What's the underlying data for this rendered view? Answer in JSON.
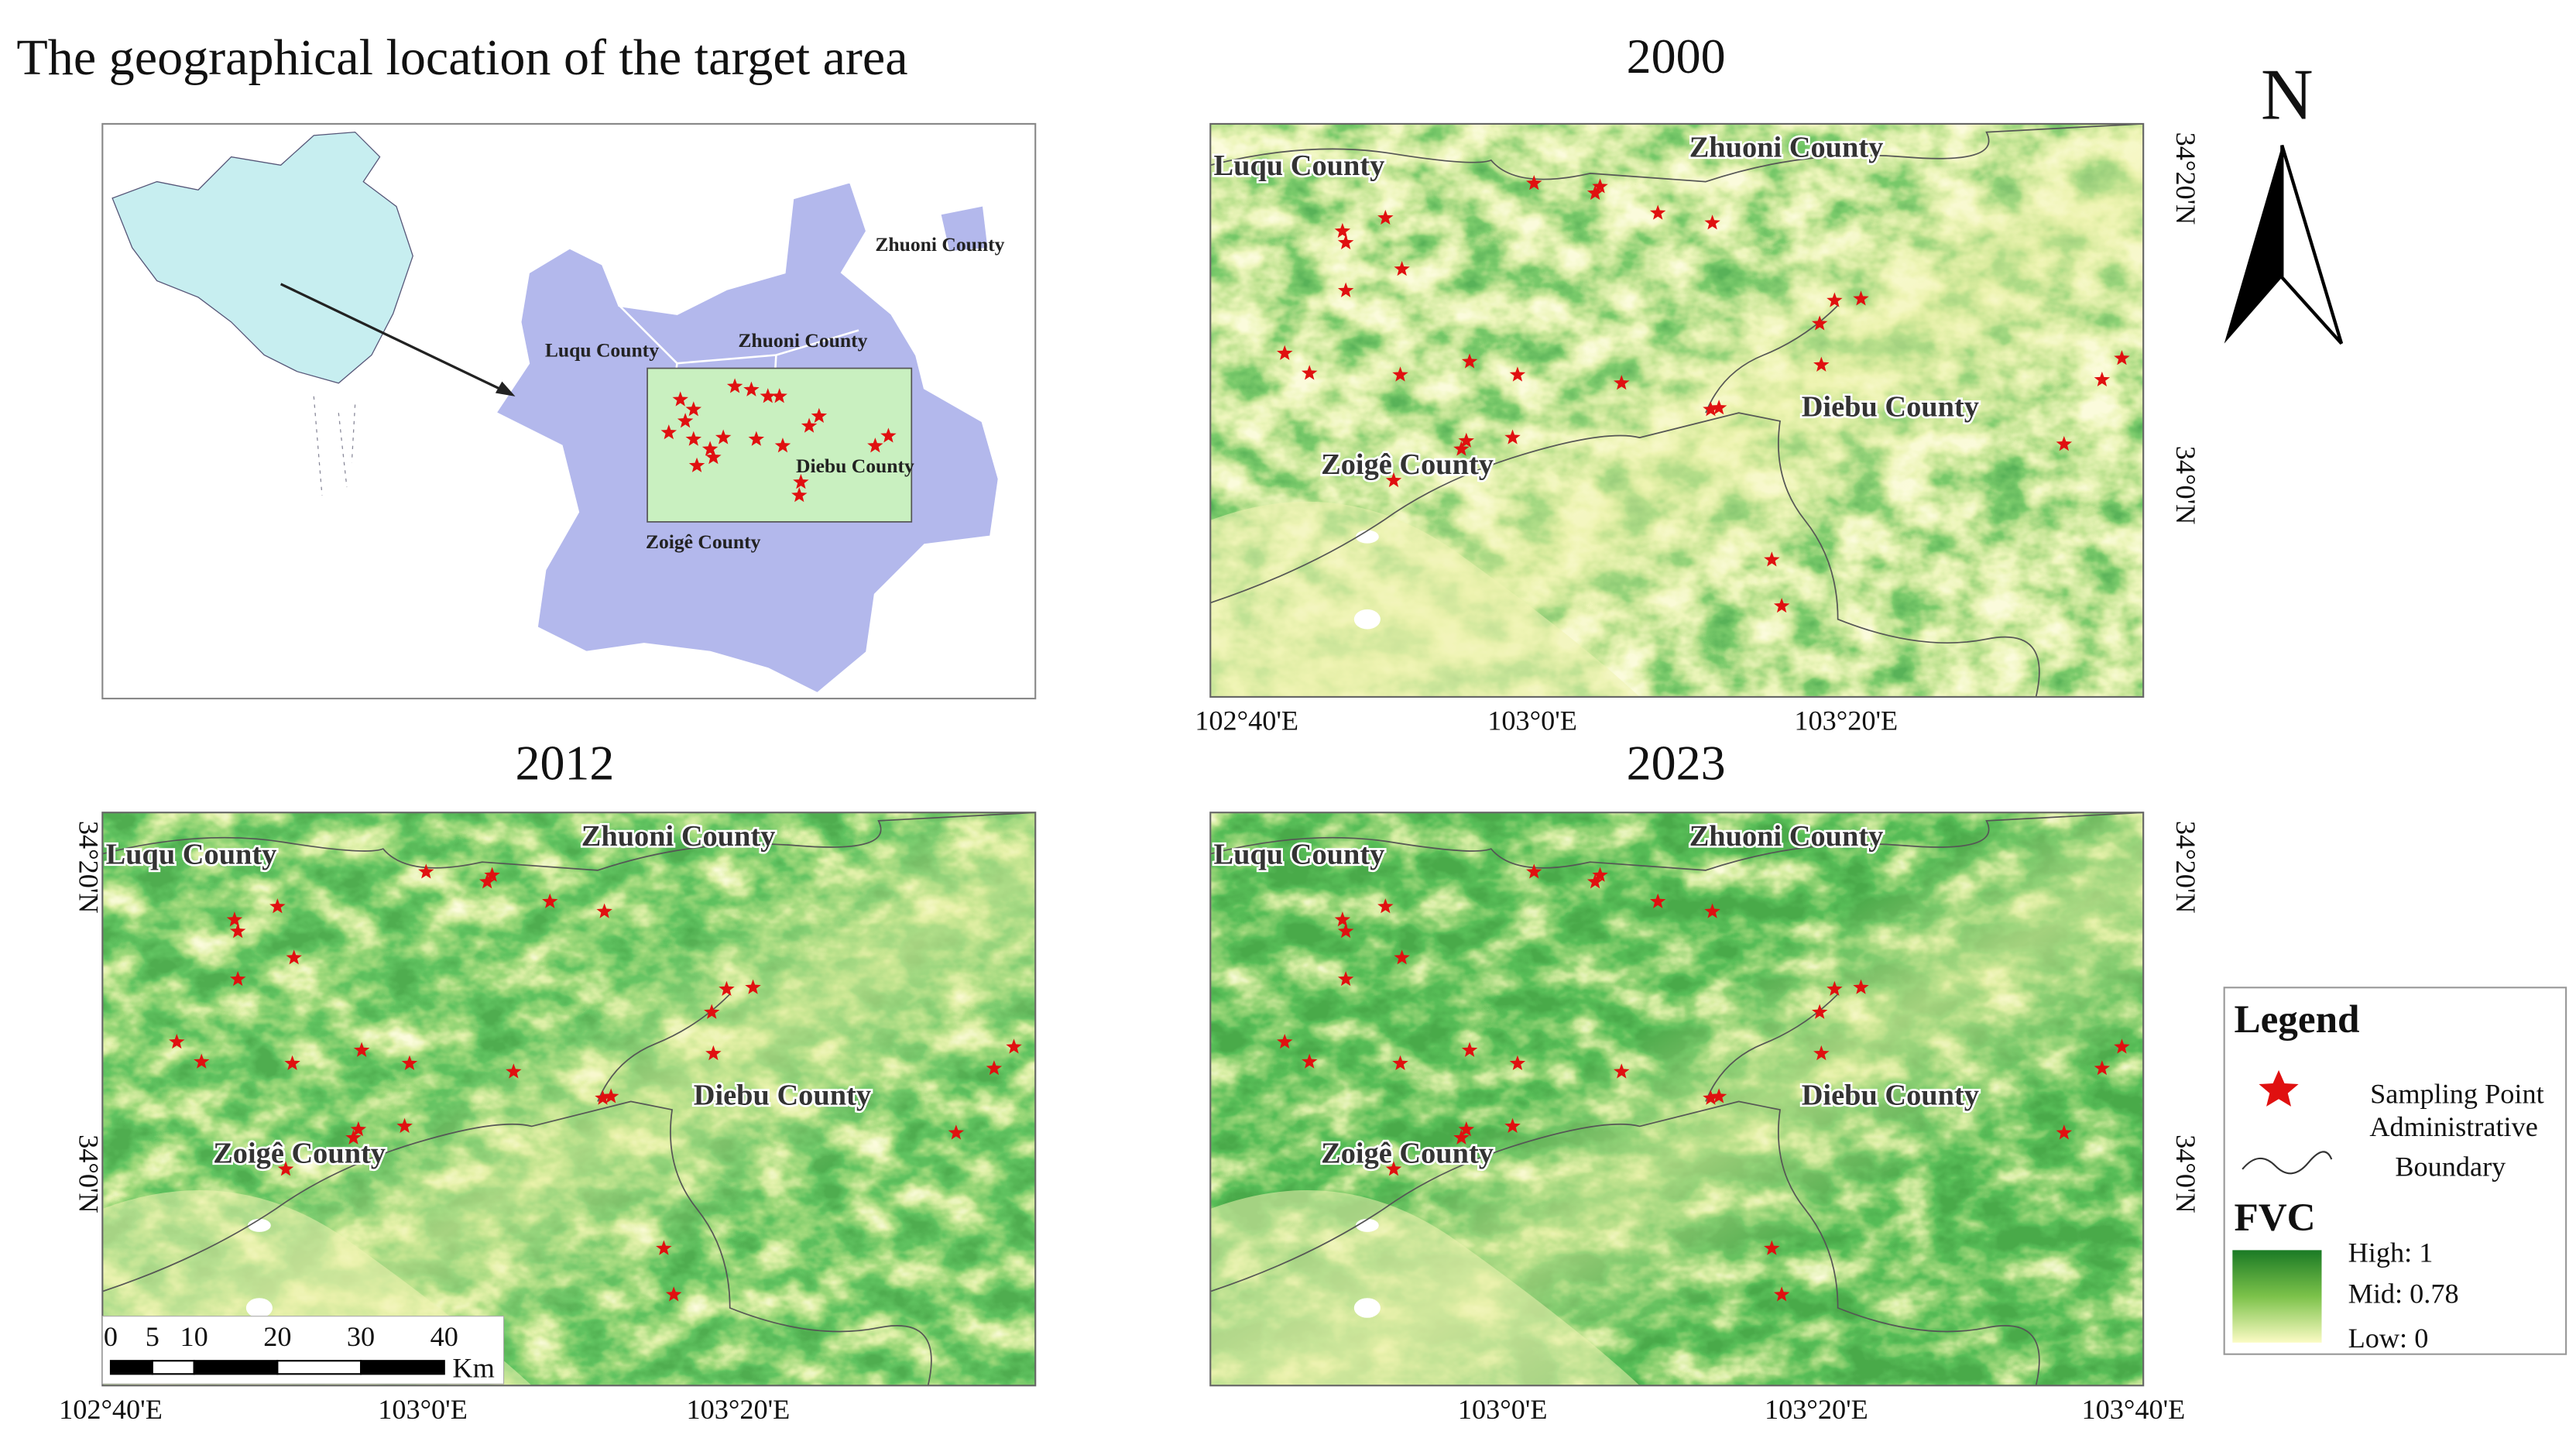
{
  "title": "The geographical location of the target area",
  "location_map": {
    "labels": [
      "Zhuoni County",
      "Luqu County",
      "Zhuoni County",
      "Diebu County",
      "Zoigê County"
    ]
  },
  "panels": [
    {
      "title": "2000",
      "labels": [
        "Luqu County",
        "Zhuoni County",
        "Diebu County",
        "Zoigê County"
      ],
      "x_labels": [
        "102°40'E",
        "103°0'E",
        "103°20'E"
      ],
      "y_labels": [
        "34°20'N",
        "34°0'N"
      ]
    },
    {
      "title": "2012",
      "labels": [
        "Luqu County",
        "Zhuoni County",
        "Diebu County",
        "Zoigê County"
      ],
      "x_labels": [
        "102°40'E",
        "103°0'E",
        "103°20'E"
      ],
      "y_labels": [
        "34°20'N",
        "34°0'N"
      ]
    },
    {
      "title": "2023",
      "labels": [
        "Luqu County",
        "Zhuoni County",
        "Diebu County",
        "Zoigê County"
      ],
      "x_labels": [
        "103°0'E",
        "103°20'E",
        "103°40'E"
      ],
      "y_labels": [
        "34°20'N",
        "34°0'N"
      ]
    }
  ],
  "north": "N",
  "scale_bar": {
    "ticks": [
      0,
      5,
      10,
      20,
      30,
      40
    ],
    "unit": "Km"
  },
  "legend": {
    "title": "Legend",
    "point": "Sampling Point",
    "boundary": [
      "Administrative",
      "Boundary"
    ],
    "fvc_title": "FVC",
    "fvc_labels": [
      "High: 1",
      "Mid: 0.78",
      "Low: 0"
    ]
  }
}
